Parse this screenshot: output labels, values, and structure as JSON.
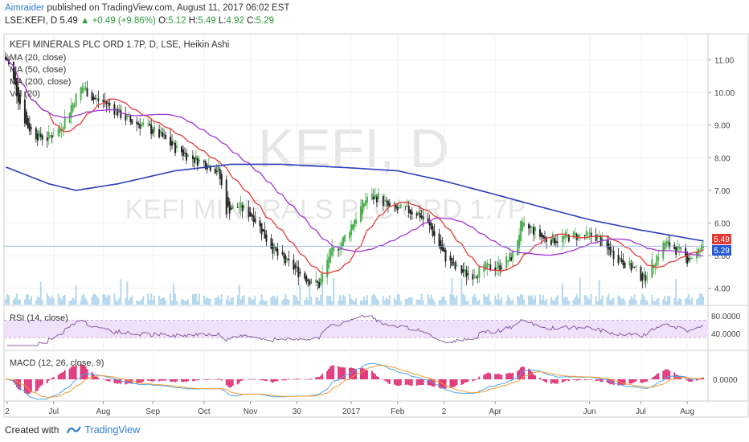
{
  "header": {
    "author": "Aimraider",
    "published": "published on TradingView.com, August 11, 2017 06:02 EST"
  },
  "quote": {
    "symbol": "LSE:KEFI, D",
    "last": "5.49",
    "change": "+0.49 (+9.86%)",
    "o_label": "O:",
    "o": "5.12",
    "h_label": "H:",
    "h": "5.49",
    "l_label": "L:",
    "l": "4.92",
    "c_label": "C:",
    "c": "5.29"
  },
  "legend": {
    "title": "KEFI MINERALS PLC ORD 1.7P, D, LSE, Heikin Ashi",
    "ma20": "MA (20, close)",
    "ma50": "MA (50, close)",
    "ma200": "MA (200, close)",
    "vol": "Vol (20)"
  },
  "watermark": {
    "big": "KEFI, D",
    "small": "KEFI MINERALS PLC ORD 1.7P"
  },
  "price_tags": {
    "red": "5.49",
    "blue": "5.29"
  },
  "rsi": {
    "label": "RSI (14, close)",
    "ticks": [
      "80.0000",
      "40.0000"
    ]
  },
  "macd": {
    "label": "MACD (12, 26, close, 9)",
    "tick": "0.0000"
  },
  "x_axis": {
    "labels": [
      "2",
      "Jul",
      "Aug",
      "Sep",
      "Oct",
      "Nov",
      "30",
      "2017",
      "Feb",
      "2",
      "Apr",
      "Jun",
      "Jul",
      "Aug"
    ]
  },
  "footer": {
    "created": "Created with",
    "brand": "TradingView"
  },
  "colors": {
    "bull": "#4caf50",
    "bear": "#222222",
    "ma20": "#e53935",
    "ma50": "#a335d6",
    "ma200": "#2a3fb8",
    "volume": "#9ccbe8",
    "rsi_band": "#f0e1fb",
    "rsi_line": "#7d4e9a",
    "macd_line": "#4da4e8",
    "signal_line": "#f39c33",
    "hist": "#e0357a"
  },
  "chart_data": {
    "type": "candlestick",
    "title": "KEFI MINERALS PLC ORD 1.7P, D, LSE, Heikin Ashi",
    "y_ticks": [
      4,
      5,
      6,
      7,
      8,
      9,
      10,
      11
    ],
    "y_tick_labels": [
      "4.00",
      "5.00",
      "6.00",
      "7.00",
      "8.00",
      "9.00",
      "10.00",
      "11.00"
    ],
    "ylim": [
      3.5,
      11.8
    ],
    "x_tick_labels": [
      "2",
      "Jul",
      "Aug",
      "Sep",
      "Oct",
      "Nov",
      "30",
      "2017",
      "Feb",
      "2",
      "Apr",
      "Jun",
      "Jul",
      "Aug"
    ],
    "price_anchors": [
      [
        "2016-06-02",
        11.0
      ],
      [
        "2016-06-08",
        10.0
      ],
      [
        "2016-06-14",
        9.0
      ],
      [
        "2016-06-20",
        8.7
      ],
      [
        "2016-06-27",
        8.6
      ],
      [
        "2016-07-05",
        8.9
      ],
      [
        "2016-07-12",
        9.6
      ],
      [
        "2016-07-19",
        10.2
      ],
      [
        "2016-07-26",
        9.8
      ],
      [
        "2016-08-02",
        9.7
      ],
      [
        "2016-08-10",
        9.4
      ],
      [
        "2016-08-18",
        9.1
      ],
      [
        "2016-08-26",
        9.0
      ],
      [
        "2016-09-05",
        8.7
      ],
      [
        "2016-09-15",
        8.3
      ],
      [
        "2016-09-25",
        8.0
      ],
      [
        "2016-10-05",
        7.8
      ],
      [
        "2016-10-12",
        7.6
      ],
      [
        "2016-10-17",
        6.4
      ],
      [
        "2016-10-25",
        6.5
      ],
      [
        "2016-11-03",
        6.2
      ],
      [
        "2016-11-10",
        5.6
      ],
      [
        "2016-11-18",
        5.0
      ],
      [
        "2016-11-26",
        4.7
      ],
      [
        "2016-12-06",
        4.3
      ],
      [
        "2016-12-14",
        4.1
      ],
      [
        "2016-12-20",
        5.0
      ],
      [
        "2016-12-28",
        5.4
      ],
      [
        "2017-01-06",
        6.2
      ],
      [
        "2017-01-13",
        6.8
      ],
      [
        "2017-01-20",
        6.8
      ],
      [
        "2017-01-28",
        6.4
      ],
      [
        "2017-02-06",
        6.4
      ],
      [
        "2017-02-14",
        6.3
      ],
      [
        "2017-02-22",
        5.8
      ],
      [
        "2017-03-02",
        5.0
      ],
      [
        "2017-03-09",
        4.6
      ],
      [
        "2017-03-18",
        4.4
      ],
      [
        "2017-03-28",
        4.6
      ],
      [
        "2017-04-06",
        4.7
      ],
      [
        "2017-04-14",
        5.0
      ],
      [
        "2017-04-19",
        5.9
      ],
      [
        "2017-04-26",
        5.8
      ],
      [
        "2017-05-04",
        5.5
      ],
      [
        "2017-05-12",
        5.5
      ],
      [
        "2017-05-20",
        5.6
      ],
      [
        "2017-05-28",
        5.6
      ],
      [
        "2017-06-05",
        5.6
      ],
      [
        "2017-06-12",
        5.2
      ],
      [
        "2017-06-20",
        4.9
      ],
      [
        "2017-06-28",
        4.6
      ],
      [
        "2017-07-05",
        4.3
      ],
      [
        "2017-07-12",
        4.9
      ],
      [
        "2017-07-18",
        5.4
      ],
      [
        "2017-07-25",
        5.2
      ],
      [
        "2017-08-01",
        4.9
      ],
      [
        "2017-08-08",
        5.1
      ],
      [
        "2017-08-11",
        5.29
      ]
    ],
    "ma200_anchors": [
      [
        "2016-06-02",
        7.7
      ],
      [
        "2016-06-28",
        7.2
      ],
      [
        "2016-07-15",
        7.0
      ],
      [
        "2016-08-10",
        7.2
      ],
      [
        "2016-09-15",
        7.6
      ],
      [
        "2016-10-20",
        7.8
      ],
      [
        "2016-11-20",
        7.8
      ],
      [
        "2016-12-30",
        7.7
      ],
      [
        "2017-02-01",
        7.6
      ],
      [
        "2017-03-01",
        7.3
      ],
      [
        "2017-04-01",
        6.9
      ],
      [
        "2017-05-01",
        6.5
      ],
      [
        "2017-06-01",
        6.1
      ],
      [
        "2017-07-01",
        5.8
      ],
      [
        "2017-08-11",
        5.45
      ]
    ],
    "last_price": 5.29,
    "last_high": 5.49,
    "rsi_ticks": [
      80,
      40
    ],
    "rsi_band": [
      30,
      70
    ],
    "macd_tick": 0
  }
}
